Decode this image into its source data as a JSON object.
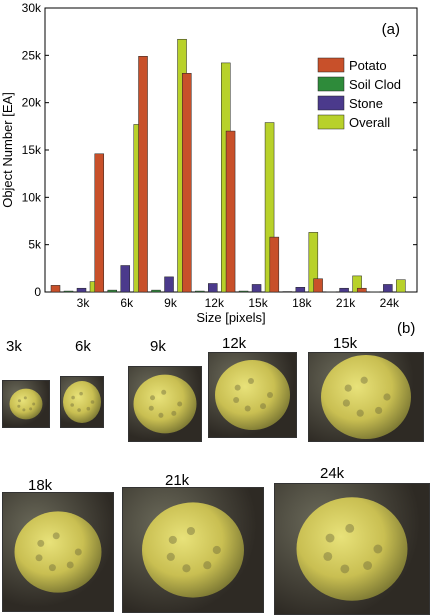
{
  "chart_data": {
    "type": "bar",
    "panel_label": "(a)",
    "xlabel": "Size [pixels]",
    "ylabel": "Object Number [EA]",
    "ylim": [
      0,
      30000
    ],
    "yticks": [
      0,
      5000,
      10000,
      15000,
      20000,
      25000,
      30000
    ],
    "ytick_labels": [
      "0",
      "5k",
      "10k",
      "15k",
      "20k",
      "25k",
      "30k"
    ],
    "categories": [
      "3k",
      "6k",
      "9k",
      "12k",
      "15k",
      "18k",
      "21k",
      "24k"
    ],
    "legend_position": "top-right",
    "grid": false,
    "series": [
      {
        "name": "Potato",
        "color": "#c8502a",
        "values": [
          700,
          14600,
          24900,
          23100,
          17000,
          5800,
          1400,
          400
        ]
      },
      {
        "name": "Soil Clod",
        "color": "#2e8b3a",
        "values": [
          100,
          200,
          200,
          100,
          100,
          50,
          20,
          20
        ]
      },
      {
        "name": "Stone",
        "color": "#4b3a8c",
        "values": [
          400,
          2800,
          1600,
          900,
          800,
          500,
          400,
          800
        ]
      },
      {
        "name": "Overall",
        "color": "#b8d12a",
        "values": [
          1100,
          17700,
          26700,
          24200,
          17900,
          6300,
          1700,
          1300
        ]
      }
    ]
  },
  "samples": {
    "panel_label": "(b)",
    "items": [
      {
        "label": "3k"
      },
      {
        "label": "6k"
      },
      {
        "label": "9k"
      },
      {
        "label": "12k"
      },
      {
        "label": "15k"
      },
      {
        "label": "18k"
      },
      {
        "label": "21k"
      },
      {
        "label": "24k"
      }
    ]
  }
}
